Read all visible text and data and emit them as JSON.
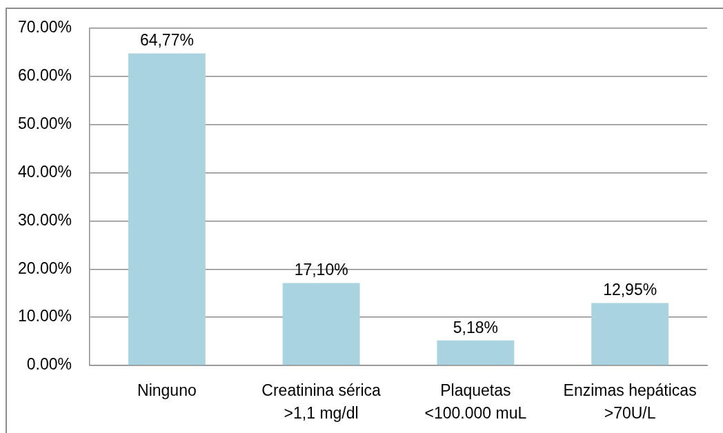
{
  "chart_data": {
    "type": "bar",
    "categories": [
      "Ninguno",
      "Creatinina sérica\n>1,1 mg/dl",
      "Plaquetas\n<100.000 muL",
      "Enzimas hepáticas\n>70U/L"
    ],
    "values": [
      64.77,
      17.1,
      5.18,
      12.95
    ],
    "value_labels": [
      "64,77%",
      "17,10%",
      "5,18%",
      "12,95%"
    ],
    "color": "#a9d3de",
    "ylim": [
      0,
      70
    ],
    "yticks": [
      {
        "value": 0,
        "label": "0.00%"
      },
      {
        "value": 10,
        "label": "10.00%"
      },
      {
        "value": 20,
        "label": "20.00%"
      },
      {
        "value": 30,
        "label": "30.00%"
      },
      {
        "value": 40,
        "label": "40.00%"
      },
      {
        "value": 50,
        "label": "50.00%"
      },
      {
        "value": 60,
        "label": "60.00%"
      },
      {
        "value": 70,
        "label": "70.00%"
      }
    ],
    "grid": "y"
  }
}
